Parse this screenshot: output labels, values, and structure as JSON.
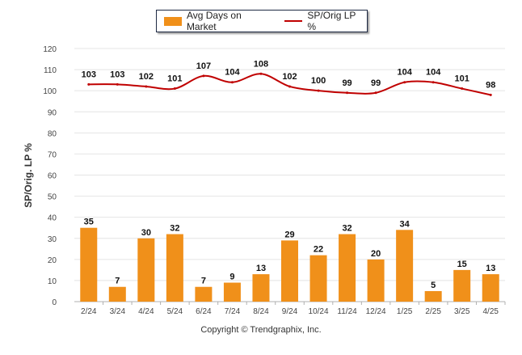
{
  "chart_data": {
    "type": "bar",
    "categories": [
      "2/24",
      "3/24",
      "4/24",
      "5/24",
      "6/24",
      "7/24",
      "8/24",
      "9/24",
      "10/24",
      "11/24",
      "12/24",
      "1/25",
      "2/25",
      "3/25",
      "4/25"
    ],
    "series": [
      {
        "name": "Avg Days on Market",
        "type": "bar",
        "color": "#f0901a",
        "values": [
          35,
          7,
          30,
          32,
          7,
          9,
          13,
          29,
          22,
          32,
          20,
          34,
          5,
          15,
          13
        ]
      },
      {
        "name": "SP/Orig LP %",
        "type": "line",
        "color": "#c00000",
        "values": [
          103,
          103,
          102,
          101,
          107,
          104,
          108,
          102,
          100,
          99,
          99,
          104,
          104,
          101,
          98
        ]
      }
    ],
    "ylabel": "SP/Orig. LP %",
    "ylim": [
      0,
      120
    ],
    "yticks": [
      0,
      10,
      20,
      30,
      40,
      50,
      60,
      70,
      80,
      90,
      100,
      110,
      120
    ],
    "grid": true,
    "legend_position": "top"
  },
  "legend": {
    "bar_label": "Avg Days on Market",
    "line_label": "SP/Orig LP %"
  },
  "footer": {
    "copyright": "Copyright © Trendgraphix, Inc."
  }
}
